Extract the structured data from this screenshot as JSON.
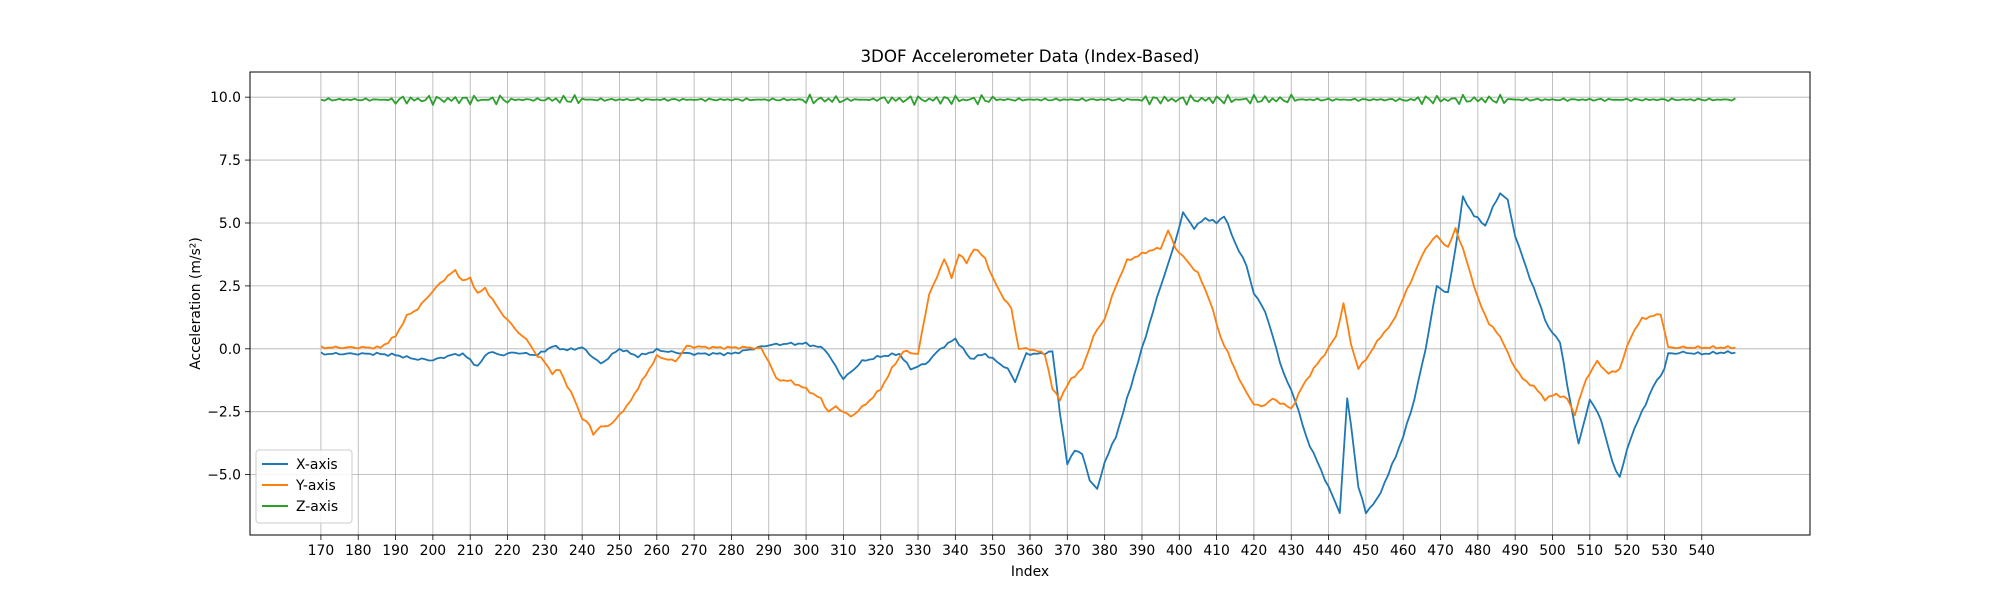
{
  "chart_data": {
    "type": "line",
    "title": "3DOF Accelerometer Data (Index-Based)",
    "xlabel": "Index",
    "ylabel": "Acceleration (m/s²)",
    "xlim": [
      151.0,
      569.0
    ],
    "ylim": [
      -7.4,
      11.0
    ],
    "x_ticks": [
      170,
      180,
      190,
      200,
      210,
      220,
      230,
      240,
      250,
      260,
      270,
      280,
      290,
      300,
      310,
      320,
      330,
      340,
      350,
      360,
      370,
      380,
      390,
      400,
      410,
      420,
      430,
      440,
      450,
      460,
      470,
      480,
      490,
      500,
      510,
      520,
      530,
      540
    ],
    "y_ticks": [
      -5.0,
      -2.5,
      0.0,
      2.5,
      5.0,
      7.5,
      10.0
    ],
    "y_tick_labels": [
      "−5.0",
      "−2.5",
      "0.0",
      "2.5",
      "5.0",
      "7.5",
      "10.0"
    ],
    "grid": true,
    "legend_position": "lower-left",
    "series": [
      {
        "name": "X-axis",
        "color": "#1f77b4",
        "points": [
          [
            170,
            -0.2
          ],
          [
            180,
            -0.2
          ],
          [
            185,
            -0.2
          ],
          [
            190,
            -0.25
          ],
          [
            195,
            -0.4
          ],
          [
            200,
            -0.45
          ],
          [
            205,
            -0.25
          ],
          [
            208,
            -0.2
          ],
          [
            212,
            -0.7
          ],
          [
            215,
            -0.1
          ],
          [
            218,
            -0.25
          ],
          [
            222,
            -0.15
          ],
          [
            228,
            -0.25
          ],
          [
            232,
            0.1
          ],
          [
            236,
            -0.05
          ],
          [
            240,
            0.05
          ],
          [
            245,
            -0.6
          ],
          [
            250,
            0.0
          ],
          [
            255,
            -0.3
          ],
          [
            260,
            -0.05
          ],
          [
            265,
            -0.15
          ],
          [
            270,
            -0.2
          ],
          [
            280,
            -0.2
          ],
          [
            290,
            0.15
          ],
          [
            295,
            0.2
          ],
          [
            300,
            0.2
          ],
          [
            305,
            0.0
          ],
          [
            310,
            -1.2
          ],
          [
            315,
            -0.5
          ],
          [
            320,
            -0.3
          ],
          [
            325,
            -0.2
          ],
          [
            328,
            -0.8
          ],
          [
            332,
            -0.6
          ],
          [
            336,
            0.0
          ],
          [
            340,
            0.4
          ],
          [
            344,
            -0.4
          ],
          [
            348,
            -0.2
          ],
          [
            354,
            -0.8
          ],
          [
            356,
            -1.3
          ],
          [
            359,
            -0.2
          ],
          [
            363,
            -0.2
          ],
          [
            366,
            -0.1
          ],
          [
            368,
            -2.5
          ],
          [
            370,
            -4.6
          ],
          [
            372,
            -4.0
          ],
          [
            374,
            -4.2
          ],
          [
            376,
            -5.2
          ],
          [
            378,
            -5.6
          ],
          [
            380,
            -4.5
          ],
          [
            383,
            -3.5
          ],
          [
            386,
            -2.0
          ],
          [
            389,
            -0.5
          ],
          [
            392,
            1.0
          ],
          [
            395,
            2.5
          ],
          [
            398,
            3.8
          ],
          [
            401,
            5.4
          ],
          [
            404,
            4.8
          ],
          [
            407,
            5.2
          ],
          [
            410,
            5.0
          ],
          [
            412,
            5.3
          ],
          [
            415,
            4.2
          ],
          [
            418,
            3.3
          ],
          [
            420,
            2.2
          ],
          [
            423,
            1.5
          ],
          [
            426,
            0.0
          ],
          [
            428,
            -1.0
          ],
          [
            431,
            -2.0
          ],
          [
            434,
            -3.5
          ],
          [
            437,
            -4.5
          ],
          [
            440,
            -5.5
          ],
          [
            443,
            -6.5
          ],
          [
            445,
            -2.0
          ],
          [
            446,
            -3.0
          ],
          [
            448,
            -5.5
          ],
          [
            450,
            -6.5
          ],
          [
            453,
            -6.0
          ],
          [
            456,
            -5.0
          ],
          [
            460,
            -3.5
          ],
          [
            463,
            -2.0
          ],
          [
            466,
            0.0
          ],
          [
            469,
            2.5
          ],
          [
            472,
            2.2
          ],
          [
            474,
            4.0
          ],
          [
            476,
            6.0
          ],
          [
            479,
            5.3
          ],
          [
            482,
            4.9
          ],
          [
            484,
            5.6
          ],
          [
            486,
            6.2
          ],
          [
            488,
            5.9
          ],
          [
            490,
            4.5
          ],
          [
            493,
            3.2
          ],
          [
            496,
            2.0
          ],
          [
            499,
            0.8
          ],
          [
            502,
            0.3
          ],
          [
            504,
            -1.5
          ],
          [
            507,
            -3.8
          ],
          [
            510,
            -2.0
          ],
          [
            513,
            -2.8
          ],
          [
            516,
            -4.5
          ],
          [
            518,
            -5.1
          ],
          [
            521,
            -3.5
          ],
          [
            524,
            -2.5
          ],
          [
            527,
            -1.5
          ],
          [
            530,
            -0.8
          ],
          [
            531,
            -0.2
          ],
          [
            535,
            -0.15
          ],
          [
            540,
            -0.2
          ],
          [
            545,
            -0.15
          ],
          [
            549,
            -0.15
          ]
        ]
      },
      {
        "name": "Y-axis",
        "color": "#ff7f0e",
        "points": [
          [
            170,
            0.05
          ],
          [
            175,
            0.05
          ],
          [
            180,
            0.05
          ],
          [
            186,
            0.05
          ],
          [
            190,
            0.5
          ],
          [
            193,
            1.3
          ],
          [
            196,
            1.6
          ],
          [
            200,
            2.3
          ],
          [
            204,
            2.9
          ],
          [
            206,
            3.1
          ],
          [
            208,
            2.7
          ],
          [
            210,
            2.8
          ],
          [
            212,
            2.2
          ],
          [
            214,
            2.4
          ],
          [
            218,
            1.5
          ],
          [
            222,
            0.8
          ],
          [
            224,
            0.5
          ],
          [
            226,
            0.2
          ],
          [
            228,
            -0.3
          ],
          [
            230,
            -0.5
          ],
          [
            232,
            -1.0
          ],
          [
            234,
            -0.8
          ],
          [
            236,
            -1.5
          ],
          [
            238,
            -2.0
          ],
          [
            240,
            -2.8
          ],
          [
            242,
            -3.0
          ],
          [
            243,
            -3.4
          ],
          [
            245,
            -3.1
          ],
          [
            248,
            -3.0
          ],
          [
            250,
            -2.6
          ],
          [
            252,
            -2.3
          ],
          [
            256,
            -1.3
          ],
          [
            260,
            -0.3
          ],
          [
            265,
            -0.5
          ],
          [
            268,
            0.1
          ],
          [
            275,
            0.05
          ],
          [
            285,
            0.05
          ],
          [
            288,
            0.0
          ],
          [
            290,
            -0.5
          ],
          [
            292,
            -1.2
          ],
          [
            296,
            -1.3
          ],
          [
            300,
            -1.6
          ],
          [
            304,
            -2.0
          ],
          [
            306,
            -2.5
          ],
          [
            308,
            -2.3
          ],
          [
            312,
            -2.7
          ],
          [
            316,
            -2.2
          ],
          [
            320,
            -1.6
          ],
          [
            323,
            -0.8
          ],
          [
            326,
            -0.1
          ],
          [
            330,
            -0.2
          ],
          [
            333,
            2.2
          ],
          [
            335,
            2.8
          ],
          [
            337,
            3.6
          ],
          [
            339,
            2.8
          ],
          [
            341,
            3.8
          ],
          [
            343,
            3.4
          ],
          [
            345,
            4.0
          ],
          [
            348,
            3.6
          ],
          [
            350,
            2.8
          ],
          [
            353,
            2.0
          ],
          [
            355,
            1.6
          ],
          [
            357,
            0.0
          ],
          [
            360,
            0.0
          ],
          [
            364,
            -0.2
          ],
          [
            366,
            -1.6
          ],
          [
            368,
            -2.0
          ],
          [
            371,
            -1.2
          ],
          [
            374,
            -0.8
          ],
          [
            377,
            0.5
          ],
          [
            380,
            1.2
          ],
          [
            383,
            2.5
          ],
          [
            386,
            3.5
          ],
          [
            389,
            3.7
          ],
          [
            392,
            3.9
          ],
          [
            395,
            4.0
          ],
          [
            397,
            4.7
          ],
          [
            399,
            4.0
          ],
          [
            402,
            3.5
          ],
          [
            405,
            3.0
          ],
          [
            408,
            2.0
          ],
          [
            411,
            0.5
          ],
          [
            414,
            -0.5
          ],
          [
            417,
            -1.5
          ],
          [
            420,
            -2.2
          ],
          [
            422,
            -2.3
          ],
          [
            425,
            -2.0
          ],
          [
            428,
            -2.2
          ],
          [
            430,
            -2.4
          ],
          [
            433,
            -1.5
          ],
          [
            436,
            -0.8
          ],
          [
            439,
            -0.2
          ],
          [
            442,
            0.5
          ],
          [
            444,
            1.8
          ],
          [
            446,
            0.2
          ],
          [
            448,
            -0.8
          ],
          [
            451,
            -0.2
          ],
          [
            454,
            0.5
          ],
          [
            457,
            1.0
          ],
          [
            460,
            2.0
          ],
          [
            463,
            3.0
          ],
          [
            466,
            4.0
          ],
          [
            469,
            4.5
          ],
          [
            472,
            4.0
          ],
          [
            474,
            4.8
          ],
          [
            477,
            3.5
          ],
          [
            480,
            2.0
          ],
          [
            483,
            1.0
          ],
          [
            486,
            0.5
          ],
          [
            489,
            -0.5
          ],
          [
            492,
            -1.2
          ],
          [
            495,
            -1.5
          ],
          [
            498,
            -2.0
          ],
          [
            501,
            -1.8
          ],
          [
            504,
            -2.0
          ],
          [
            506,
            -2.6
          ],
          [
            509,
            -1.2
          ],
          [
            512,
            -0.5
          ],
          [
            515,
            -1.0
          ],
          [
            518,
            -0.8
          ],
          [
            521,
            0.5
          ],
          [
            524,
            1.2
          ],
          [
            527,
            1.3
          ],
          [
            529,
            1.4
          ],
          [
            531,
            0.05
          ],
          [
            540,
            0.05
          ],
          [
            549,
            0.05
          ]
        ]
      },
      {
        "name": "Z-axis",
        "color": "#2ca02c",
        "points": [
          [
            170,
            9.9
          ],
          [
            549,
            9.9
          ]
        ]
      }
    ],
    "z_noise_segments": [
      [
        190,
        220
      ],
      [
        230,
        240
      ],
      [
        300,
        310
      ],
      [
        320,
        350
      ],
      [
        390,
        430
      ],
      [
        460,
        490
      ]
    ]
  }
}
